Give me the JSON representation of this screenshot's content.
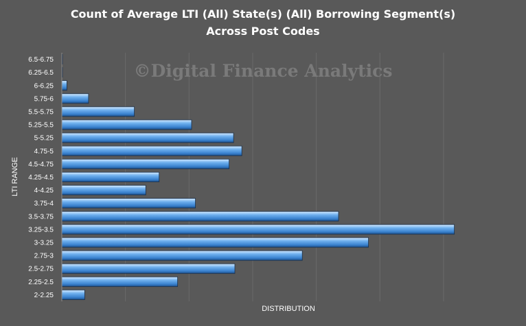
{
  "chart_data": {
    "type": "bar",
    "orientation": "horizontal",
    "title_lines": [
      "Count  of Average LTI (All) State(s) (All) Borrowing Segment(s)",
      "Across Post Codes"
    ],
    "watermark": "©Digital Finance Analytics",
    "xlabel": "DISTRIBUTION",
    "ylabel": "LTI RANGE",
    "categories": [
      "2-2.25",
      "2.25-2.5",
      "2.5-2.75",
      "2.75-3",
      "3-3.25",
      "3.25-3.5",
      "3.5-3.75",
      "3.75-4",
      "4-4.25",
      "4.25-4.5",
      "4.5-4.75",
      "4.75-5",
      "5-5.25",
      "5.25-5.5",
      "5.5-5.75",
      "5.75-6",
      "6-6.25",
      "6.25-6.5",
      "6.5-6.75"
    ],
    "values": [
      36,
      182,
      272,
      378,
      482,
      617,
      435,
      210,
      132,
      153,
      263,
      283,
      270,
      204,
      114,
      42,
      8,
      1,
      1
    ],
    "xlim": [
      0,
      680
    ],
    "grid": "vertical",
    "x_tick_labels_visible": false,
    "legend": "none",
    "bar_color": "#4a90d9"
  }
}
